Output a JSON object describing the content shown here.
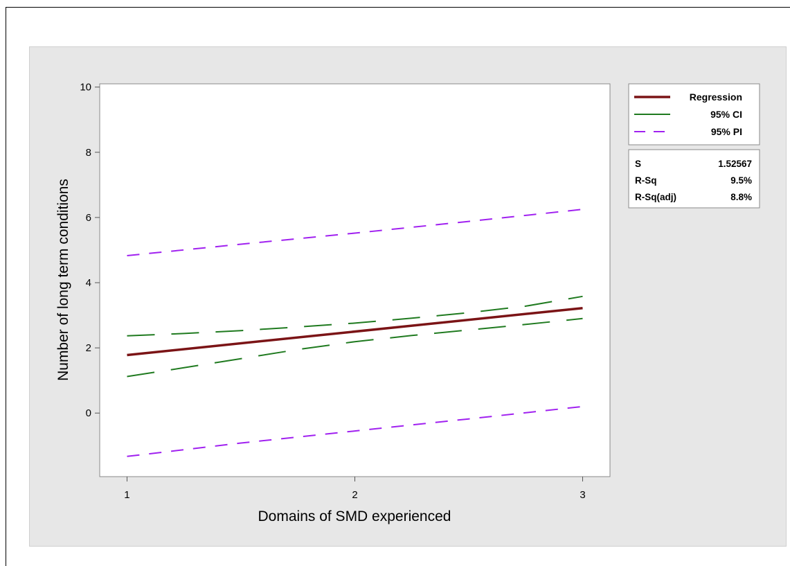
{
  "chart_data": {
    "type": "line",
    "xlabel": "Domains of SMD experienced",
    "ylabel": "Number of long term conditions",
    "xlim": [
      0.88,
      3.12
    ],
    "ylim": [
      -1.95,
      10.1
    ],
    "xticks": [
      1,
      2,
      3
    ],
    "yticks": [
      0,
      2,
      4,
      6,
      8,
      10
    ],
    "grid": false,
    "legend_position": "top-right outside plot",
    "series": [
      {
        "name": "Regression",
        "style": "solid",
        "color": "#7b1416",
        "x": [
          1,
          3
        ],
        "y": [
          1.78,
          3.22
        ]
      },
      {
        "name": "95% CI",
        "role": "upper",
        "style": "dashed",
        "color": "#1f7a1f",
        "x": [
          1,
          1.25,
          1.5,
          1.75,
          2,
          2.25,
          2.5,
          2.75,
          3
        ],
        "y": [
          2.37,
          2.44,
          2.53,
          2.64,
          2.76,
          2.91,
          3.08,
          3.28,
          3.58
        ]
      },
      {
        "name": "95% CI",
        "role": "lower",
        "style": "dashed",
        "color": "#1f7a1f",
        "x": [
          1,
          1.25,
          1.5,
          1.75,
          2,
          2.25,
          2.5,
          2.75,
          3
        ],
        "y": [
          1.12,
          1.39,
          1.67,
          1.95,
          2.19,
          2.38,
          2.55,
          2.72,
          2.9
        ]
      },
      {
        "name": "95% PI",
        "role": "upper",
        "style": "dashed",
        "color": "#a020f0",
        "x": [
          1,
          1.5,
          2,
          2.5,
          3
        ],
        "y": [
          4.83,
          5.18,
          5.52,
          5.88,
          6.25
        ]
      },
      {
        "name": "95% PI",
        "role": "lower",
        "style": "dashed",
        "color": "#a020f0",
        "x": [
          1,
          1.5,
          2,
          2.5,
          3
        ],
        "y": [
          -1.33,
          -0.92,
          -0.55,
          -0.18,
          0.2
        ]
      }
    ],
    "legend": [
      {
        "label": "Regression",
        "style": "solid",
        "color": "#7b1416"
      },
      {
        "label": "95% CI",
        "style": "dashed",
        "color": "#1f7a1f"
      },
      {
        "label": "95% PI",
        "style": "dashed",
        "color": "#a020f0"
      }
    ],
    "stats": [
      {
        "label": "S",
        "value": "1.52567"
      },
      {
        "label": "R-Sq",
        "value": "9.5%"
      },
      {
        "label": "R-Sq(adj)",
        "value": "8.8%"
      }
    ]
  }
}
